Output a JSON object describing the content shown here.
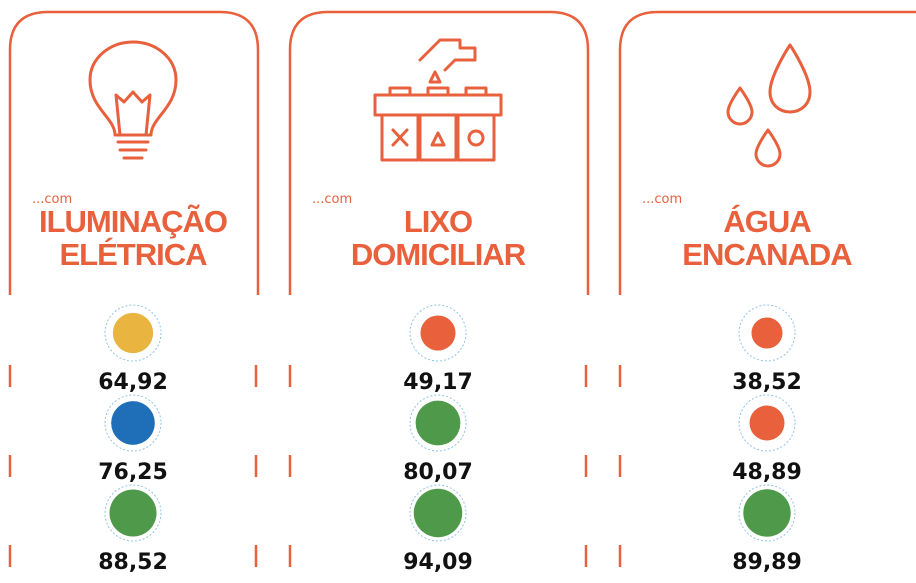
{
  "panels": [
    {
      "prefix": "...com",
      "title": [
        "ILUMINAÇÃO",
        "ELÉTRICA"
      ],
      "items": [
        {
          "value": 64.92,
          "label": "64,92",
          "color": "#eab440"
        },
        {
          "value": 76.25,
          "label": "76,25",
          "color": "#1f6fb8"
        },
        {
          "value": 88.52,
          "label": "88,52",
          "color": "#4f9a4a"
        }
      ]
    },
    {
      "prefix": "...com",
      "title": [
        "LIXO",
        "DOMICILIAR"
      ],
      "items": [
        {
          "value": 49.17,
          "label": "49,17",
          "color": "#e8603c"
        },
        {
          "value": 80.07,
          "label": "80,07",
          "color": "#4f9a4a"
        },
        {
          "value": 94.09,
          "label": "94,09",
          "color": "#4f9a4a"
        }
      ]
    },
    {
      "prefix": "...com",
      "title": [
        "ÁGUA",
        "ENCANADA"
      ],
      "items": [
        {
          "value": 38.52,
          "label": "38,52",
          "color": "#e8603c"
        },
        {
          "value": 48.89,
          "label": "48,89",
          "color": "#e8603c"
        },
        {
          "value": 89.89,
          "label": "89,89",
          "color": "#4f9a4a"
        }
      ]
    }
  ]
}
